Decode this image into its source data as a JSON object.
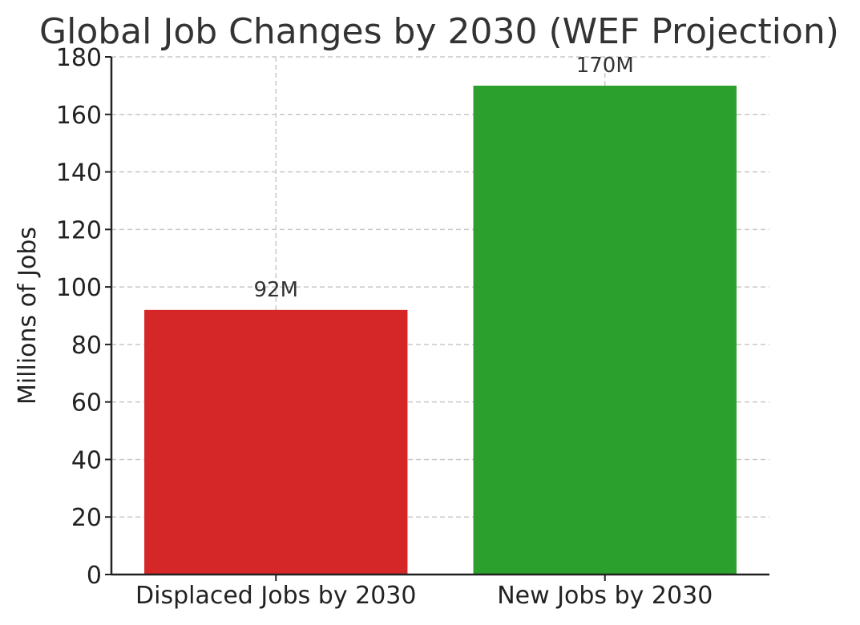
{
  "chart_data": {
    "type": "bar",
    "title": "Global Job Changes by 2030 (WEF Projection)",
    "xlabel": "",
    "ylabel": "Millions of Jobs",
    "categories": [
      "Displaced Jobs by 2030",
      "New Jobs by 2030"
    ],
    "values": [
      92,
      170
    ],
    "data_labels": [
      "92M",
      "170M"
    ],
    "colors": [
      "#d62728",
      "#2ca02c"
    ],
    "ylim": [
      0,
      180
    ],
    "yticks": [
      0,
      20,
      40,
      60,
      80,
      100,
      120,
      140,
      160,
      180
    ],
    "grid": true
  }
}
